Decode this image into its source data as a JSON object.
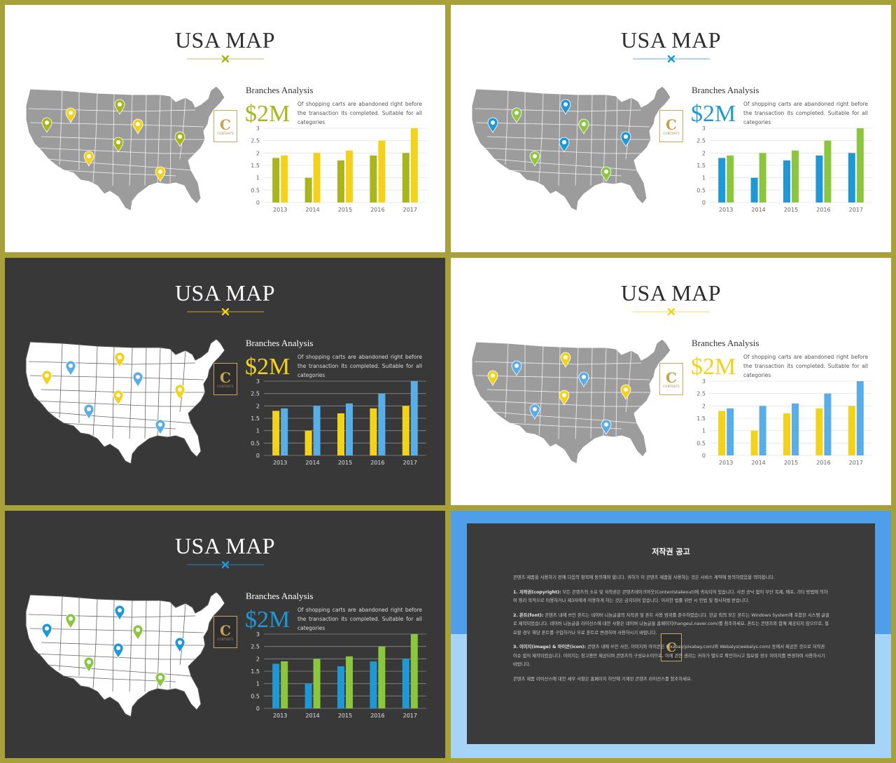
{
  "slides": [
    {
      "theme": "light",
      "title": "USA MAP",
      "subtitle": "Branches Analysis",
      "value": "$2M",
      "description": "Of shopping carts are abandoned right before the transaction its completed. Suitable for all categories",
      "colors": {
        "accent": "#a8b51c",
        "series1": "#a8b51c",
        "series2": "#f2d21a",
        "map": "#9c9c9c",
        "divider": "#a8b51c",
        "pin1": "#a8b51c",
        "pin2": "#f2d21a",
        "mapBorder": "#ffffff"
      }
    },
    {
      "theme": "light",
      "title": "USA MAP",
      "subtitle": "Branches Analysis",
      "value": "$2M",
      "description": "Of shopping carts are abandoned right before the transaction its completed. Suitable for all categories",
      "colors": {
        "accent": "#1f99d6",
        "series1": "#1f99d6",
        "series2": "#8cc63f",
        "map": "#9c9c9c",
        "divider": "#1f99d6",
        "pin1": "#1f99d6",
        "pin2": "#8cc63f",
        "mapBorder": "#ffffff"
      }
    },
    {
      "theme": "dark",
      "title": "USA MAP",
      "subtitle": "Branches Analysis",
      "value": "$2M",
      "description": "Of shopping carts are abandoned right before the transaction its completed. Suitable for all categories",
      "colors": {
        "accent": "#f2d21a",
        "series1": "#f2d21a",
        "series2": "#5aaee8",
        "map": "#ffffff",
        "divider": "#f2d21a",
        "pin1": "#f2d21a",
        "pin2": "#5aaee8",
        "mapBorder": "#555555"
      }
    },
    {
      "theme": "light",
      "title": "USA MAP",
      "subtitle": "Branches Analysis",
      "value": "$2M",
      "description": "Of shopping carts are abandoned right before the transaction its completed. Suitable for all categories",
      "colors": {
        "accent": "#f2d21a",
        "series1": "#f2d21a",
        "series2": "#5aaee8",
        "map": "#9c9c9c",
        "divider": "#f2d21a",
        "pin1": "#f2d21a",
        "pin2": "#5aaee8",
        "mapBorder": "#ffffff"
      }
    },
    {
      "theme": "dark",
      "title": "USA MAP",
      "subtitle": "Branches Analysis",
      "value": "$2M",
      "description": "Of shopping carts are abandoned right before the transaction its completed. Suitable for all categories",
      "colors": {
        "accent": "#1f99d6",
        "series1": "#1f99d6",
        "series2": "#8cc63f",
        "map": "#ffffff",
        "divider": "#1f99d6",
        "pin1": "#1f99d6",
        "pin2": "#8cc63f",
        "mapBorder": "#555555"
      }
    }
  ],
  "badge": {
    "letter": "C",
    "text": "CONTENTS"
  },
  "chart_data": {
    "type": "bar",
    "categories": [
      "2013",
      "2014",
      "2015",
      "2016",
      "2017"
    ],
    "series": [
      {
        "values": [
          1.8,
          1.0,
          1.7,
          1.9,
          2.0
        ]
      },
      {
        "values": [
          1.9,
          2.0,
          2.1,
          2.5,
          3.0
        ]
      }
    ],
    "ylim": [
      0,
      3
    ],
    "yticks": [
      "0",
      "0.5",
      "1",
      "1.5",
      "2",
      "2.5",
      "3"
    ]
  },
  "pins": [
    {
      "pin": "pin1"
    },
    {
      "pin": "pin2"
    },
    {
      "pin": "pin1"
    },
    {
      "pin": "pin2"
    },
    {
      "pin": "pin1"
    },
    {
      "pin": "pin2"
    },
    {
      "pin": "pin2"
    },
    {
      "pin": "pin1"
    }
  ],
  "notice": {
    "title": "저작권 공고",
    "paragraphs": [
      {
        "bold": "",
        "text": "콘텐츠 제품을 사용하기 전에 다음의 항목에 동의해야 합니다. 귀하가 이 콘텐츠 제품을 사용하는 것은 서비스 계약에 동의하였음을 의미합니다."
      },
      {
        "bold": "1. 저작권(copyright):",
        "text": " 모든 콘텐츠의 소유 및 저작권은 콘텐츠테이크아웃(Contentstakeout)에 귀속되어 있습니다. 사전 승낙 없이 무단 복제, 배포, 기타 방법에 의하여 영리 목적으로 이용하거나 제3자에게 이용하게 하는 것은 금지되어 있습니다. 이러한 법률 위반 시 민법 및 형사처벌 받습니다."
      },
      {
        "bold": "2. 폰트(font):",
        "text": " 콘텐츠 내에 쓰인 폰트는 네이버 나눔글꼴의 저작권 및 폰트 사용 범위를 준수하였습니다. 한글 외의 모든 폰트는 Windows System에 포함된 시스템 글꼴로 제작되었습니다. 네이버 나눔글꼴 라이선스에 대한 사항은 네이버 나눔글꼴 홈페이지(hangeul.naver.com)를 참조하세요. 폰트는 콘텐츠와 함께 제공되지 않으므로, 필요할 경우 해당 폰트를 구입하거나 무료 폰트로 변경하여 사용하시기 바랍니다."
      },
      {
        "bold": "3. 이미지(image) & 아이콘(icon):",
        "text": " 콘텐츠 내에 쓰인 사진, 이미지와 아이콘은 Pixabay(pixabay.com)와 Webalys(webalys.com) 등에서 제공한 것으로 저작권 이슈 없이 제작되었습니다. 이미지는 참고용만 제공되며 콘텐츠의 구성요소이므로, 이에 관한 권리는 귀하가 별도로 확인하시고 필요할 경우 이미지를 변경하여 사용하시기 바랍니다."
      },
      {
        "bold": "",
        "text": "콘텐츠 제품 라이선스에 대한 세부 사항은 홈페이지 하단에 기재된 콘텐츠 라이선스를 참조하세요."
      }
    ]
  }
}
